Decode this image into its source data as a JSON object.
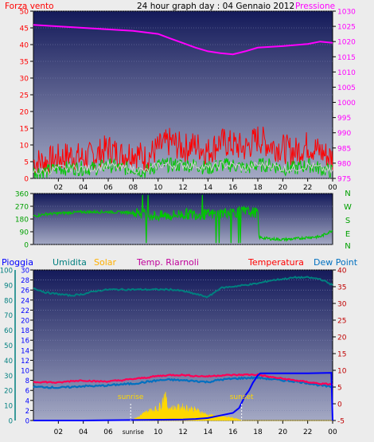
{
  "colors": {
    "page_bg": "#ececec",
    "plot_top": "#141a5a",
    "plot_bottom": "#a4a9c4",
    "wind_avg": "#00c800",
    "wind_gust": "#ff0000",
    "pressure": "#ff00ff",
    "direction": "#00c800",
    "rain": "#0000ff",
    "humidity": "#007f7f",
    "solar": "#ffd800",
    "heat_index": "#c0009a",
    "temperature": "#ff0055",
    "dew_point": "#0070c0",
    "annotation": "#ffd800"
  },
  "header": {
    "wind_label": "Forza vento",
    "title": "24 hour graph day : 04 Gennaio 2012",
    "pressure_label": "Pressione"
  },
  "legend": {
    "rain": "Pioggia",
    "humidity": "Umidita",
    "solar": "Solar",
    "heat_index": "Temp. Riarnoli",
    "temperature": "Temperatura",
    "dew_point": "Dew Point"
  },
  "chart_data": [
    {
      "type": "line",
      "panel": "wind_pressure",
      "x_unit": "hour of day",
      "x_ticks": [
        "02",
        "04",
        "06",
        "08",
        "10",
        "12",
        "14",
        "16",
        "18",
        "20",
        "22",
        "00"
      ],
      "xlim": [
        0,
        24
      ],
      "left_axis": {
        "ticks": [
          0,
          5,
          10,
          15,
          20,
          25,
          30,
          35,
          40,
          45,
          50
        ],
        "ylim": [
          0,
          50
        ]
      },
      "right_axis": {
        "ticks": [
          975,
          980,
          985,
          990,
          995,
          1000,
          1005,
          1010,
          1015,
          1020,
          1025,
          1030
        ],
        "ylim": [
          975,
          1030
        ]
      },
      "series": [
        {
          "name": "Forza vento",
          "axis": "left",
          "style": "gust",
          "x": [
            0,
            1,
            2,
            3,
            4,
            5,
            6,
            7,
            8,
            9,
            10,
            11,
            12,
            13,
            14,
            15,
            16,
            17,
            18,
            19,
            20,
            21,
            22,
            23,
            24
          ],
          "values": [
            5,
            5,
            6,
            7,
            6,
            7,
            9,
            7,
            8,
            6,
            9,
            11,
            9,
            10,
            8,
            11,
            10,
            9,
            12,
            10,
            9,
            8,
            10,
            8,
            6
          ]
        },
        {
          "axis": "left",
          "style": "avg",
          "x": [
            0,
            1,
            2,
            3,
            4,
            5,
            6,
            7,
            8,
            9,
            10,
            11,
            12,
            13,
            14,
            15,
            16,
            17,
            18,
            19,
            20,
            21,
            22,
            23,
            24
          ],
          "values": [
            2,
            2,
            3,
            3,
            3,
            3,
            4,
            3,
            3,
            2,
            4,
            4,
            4,
            4,
            3,
            4,
            4,
            3,
            4,
            4,
            3,
            3,
            4,
            3,
            2
          ]
        },
        {
          "name": "Pressione",
          "axis": "right",
          "x": [
            0,
            2,
            4,
            6,
            8,
            10,
            11,
            12,
            13,
            14,
            15,
            16,
            17,
            18,
            20,
            22,
            23,
            24
          ],
          "values": [
            1025.5,
            1025,
            1024.5,
            1024,
            1023.5,
            1022.5,
            1021,
            1019.5,
            1018,
            1016.8,
            1016.2,
            1015.8,
            1016.8,
            1018,
            1018.5,
            1019.2,
            1020,
            1019.6
          ]
        }
      ]
    },
    {
      "type": "line",
      "panel": "wind_direction",
      "x_unit": "hour of day",
      "xlim": [
        0,
        24
      ],
      "left_axis": {
        "ticks": [
          0,
          90,
          180,
          270,
          360
        ],
        "ylim": [
          0,
          360
        ]
      },
      "right_labels": [
        "N",
        "W",
        "S",
        "E",
        "N"
      ],
      "series": [
        {
          "axis": "left",
          "x": [
            0,
            1,
            2,
            4,
            6,
            8,
            9,
            10,
            11,
            12,
            13,
            14,
            15,
            16,
            17,
            18,
            18.1,
            19,
            20,
            21,
            22,
            23,
            24
          ],
          "values": [
            200,
            215,
            220,
            230,
            230,
            225,
            215,
            200,
            205,
            215,
            215,
            210,
            220,
            230,
            230,
            225,
            50,
            40,
            35,
            40,
            50,
            55,
            100
          ]
        }
      ]
    },
    {
      "type": "line",
      "panel": "rain_temperature",
      "x_unit": "hour of day",
      "x_ticks": [
        "02",
        "04",
        "06",
        "sunrise",
        "10",
        "12",
        "14",
        "16",
        "18",
        "20",
        "22",
        "00"
      ],
      "xlim": [
        0,
        24
      ],
      "far_left_axis": {
        "ticks": [
          0,
          10,
          20,
          30,
          40,
          50,
          60,
          70,
          80,
          90,
          100
        ],
        "ylim": [
          0,
          100
        ]
      },
      "left_axis": {
        "ticks": [
          0,
          2,
          4,
          6,
          8,
          10,
          12,
          14,
          16,
          18,
          20,
          22,
          24,
          26,
          28,
          30
        ],
        "ylim": [
          0,
          30
        ]
      },
      "right_axis": {
        "ticks": [
          -5,
          0,
          5,
          10,
          15,
          20,
          25,
          30,
          35,
          40
        ],
        "ylim": [
          -5,
          40
        ]
      },
      "annotations": [
        {
          "text": "sunrise",
          "x": 7.8
        },
        {
          "text": "sunset",
          "x": 16.7
        }
      ],
      "series": [
        {
          "name": "Umidita",
          "axis": "far_left",
          "x": [
            0,
            1,
            2,
            3,
            4,
            5,
            6,
            7,
            8,
            9,
            10,
            11,
            12,
            13,
            14,
            15,
            16,
            17,
            18,
            19,
            20,
            21,
            22,
            23,
            24
          ],
          "values": [
            88,
            85,
            84,
            83,
            84,
            86,
            87,
            87,
            87,
            87,
            87,
            87,
            86,
            84,
            82,
            88,
            89,
            90,
            91,
            93,
            94,
            95,
            95,
            94,
            90
          ]
        },
        {
          "name": "Solar",
          "axis": "far_left",
          "style": "area",
          "x": [
            0,
            7.8,
            8.5,
            9,
            9.5,
            10,
            10.3,
            10.5,
            10.8,
            11,
            12,
            13,
            14,
            15,
            16,
            16.7,
            24
          ],
          "values": [
            0,
            0,
            3,
            6,
            8,
            9,
            13,
            20,
            10,
            9,
            10,
            8,
            4,
            3,
            2,
            0,
            0
          ]
        },
        {
          "name": "Temperatura",
          "axis": "right",
          "x": [
            0,
            1,
            2,
            3,
            4,
            5,
            6,
            7,
            8,
            9,
            10,
            11,
            12,
            13,
            14,
            15,
            16,
            17,
            18,
            19,
            20,
            21,
            22,
            23,
            24
          ],
          "values": [
            6.5,
            6.5,
            6.3,
            6.8,
            7,
            6.7,
            6.7,
            7,
            7.4,
            7.8,
            8.3,
            8.6,
            8.6,
            8.3,
            8.2,
            8.5,
            8.6,
            8.7,
            8.7,
            8,
            7.5,
            7,
            6.5,
            6,
            5.8
          ]
        },
        {
          "name": "Dew Point",
          "axis": "right",
          "x": [
            0,
            1,
            2,
            3,
            4,
            5,
            6,
            7,
            8,
            9,
            10,
            11,
            12,
            13,
            14,
            15,
            16,
            17,
            18,
            19,
            20,
            21,
            22,
            23,
            24
          ],
          "values": [
            5,
            5,
            4.8,
            5,
            5.3,
            5.3,
            5.5,
            5.8,
            6,
            6.5,
            7,
            7.2,
            7,
            6.8,
            6.5,
            7.2,
            7.5,
            7.7,
            7.8,
            7.4,
            7,
            6.7,
            6.2,
            5.5,
            5
          ]
        },
        {
          "name": "Pioggia",
          "axis": "left",
          "x": [
            0,
            4,
            8,
            12,
            13,
            14,
            15,
            16,
            16.5,
            17,
            17.3,
            17.6,
            18,
            18.2,
            20,
            22,
            23.9,
            24
          ],
          "values": [
            0,
            0,
            0.1,
            0.2,
            0.3,
            0.5,
            1,
            1.5,
            2.5,
            5,
            6,
            7.5,
            9,
            9.4,
            9.4,
            9.4,
            9.5,
            0
          ]
        }
      ]
    }
  ]
}
